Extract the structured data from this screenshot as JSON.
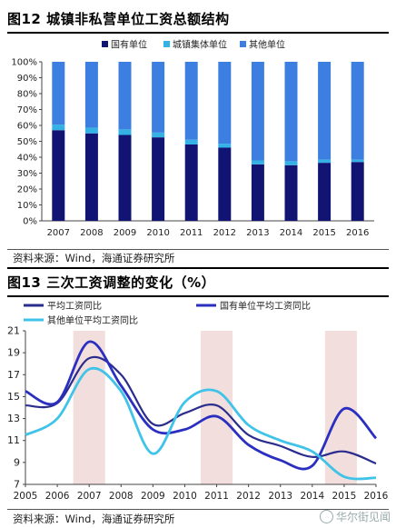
{
  "chart_data": [
    {
      "type": "bar",
      "stacked": true,
      "title": "图12 城镇非私营单位工资总额结构",
      "categories": [
        "2007",
        "2008",
        "2009",
        "2010",
        "2011",
        "2012",
        "2013",
        "2014",
        "2015",
        "2016"
      ],
      "ylim": [
        0,
        100
      ],
      "yticks": [
        "0%",
        "10%",
        "20%",
        "30%",
        "40%",
        "50%",
        "60%",
        "70%",
        "80%",
        "90%",
        "100%"
      ],
      "legend_position": "top",
      "series": [
        {
          "name": "国有单位",
          "color": "#121473",
          "values": [
            57,
            55,
            54,
            52.5,
            48,
            46,
            35.5,
            35,
            36.5,
            37
          ]
        },
        {
          "name": "城镇集体单位",
          "color": "#34b2e6",
          "values": [
            3.5,
            3.5,
            3.5,
            3,
            3,
            2.5,
            2.5,
            2.5,
            2,
            1.5
          ]
        },
        {
          "name": "其他单位",
          "color": "#3d7fe0",
          "values": [
            39.5,
            41.5,
            42.5,
            44.5,
            49,
            51.5,
            62,
            62.5,
            61.5,
            61.5
          ]
        }
      ],
      "source": "资料来源：Wind，海通证券研究所"
    },
    {
      "type": "line",
      "title": "图13 三次工资调整的变化（%）",
      "x": [
        "2005",
        "2006",
        "2007",
        "2008",
        "2009",
        "2010",
        "2011",
        "2012",
        "2013",
        "2014",
        "2015",
        "2016"
      ],
      "ylim": [
        7,
        21
      ],
      "yticks": [
        "7",
        "9",
        "11",
        "13",
        "15",
        "17",
        "19",
        "21"
      ],
      "shaded_ranges": [
        [
          "2006.5",
          "2007.5"
        ],
        [
          "2010.5",
          "2011.5"
        ],
        [
          "2014.4",
          "2015.4"
        ]
      ],
      "shade_color": "#f3dede",
      "series": [
        {
          "name": "平均工资同比",
          "color": "#2a2d8c",
          "values": [
            14.2,
            14.4,
            18.5,
            17,
            12.5,
            13.5,
            14.2,
            11.5,
            10.5,
            9.5,
            10,
            8.9
          ]
        },
        {
          "name": "国有单位平均工资同比",
          "color": "#2b2fc0",
          "values": [
            15.5,
            14.5,
            20,
            16,
            12,
            12,
            13.2,
            10.6,
            9.2,
            8.7,
            13.9,
            11.2
          ]
        },
        {
          "name": "其他单位平均工资同比",
          "color": "#3fc3e8",
          "values": [
            11.5,
            13,
            17.5,
            15.5,
            9.8,
            14.5,
            15.5,
            12.4,
            11,
            10,
            7.7,
            7.6
          ]
        }
      ],
      "source": "资料来源：Wind，海通证券研究所"
    }
  ],
  "watermark": "华尔街见闻"
}
